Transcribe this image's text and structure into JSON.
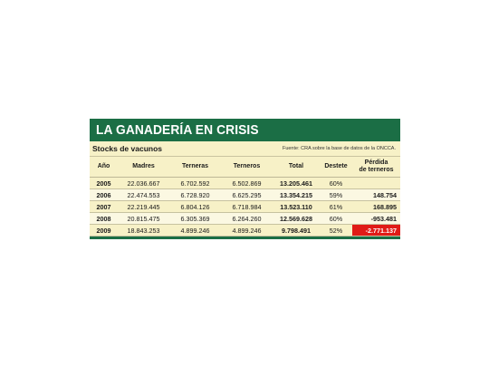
{
  "title": "LA GANADERÍA EN CRISIS",
  "subtitle": "Stocks de vacunos",
  "source": "Fuente: CRA sobre la base de datos de la ONCCA.",
  "colors": {
    "title_bar": "#1b6e45",
    "panel": "#f7f1c7",
    "highlight_negative": "#e01b17"
  },
  "headers": {
    "year": "Año",
    "madres": "Madres",
    "terneras": "Terneras",
    "terneros": "Terneros",
    "total": "Total",
    "destete": "Destete",
    "perdida_line1": "Pérdida",
    "perdida_line2": "de terneros"
  },
  "rows": [
    {
      "year": "2005",
      "madres": "22.036.667",
      "terneras": "6.702.592",
      "terneros": "6.502.869",
      "total": "13.205.461",
      "destete": "60%",
      "perdida": ""
    },
    {
      "year": "2006",
      "madres": "22.474.553",
      "terneras": "6.728.920",
      "terneros": "6.625.295",
      "total": "13.354.215",
      "destete": "59%",
      "perdida": "148.754"
    },
    {
      "year": "2007",
      "madres": "22.219.445",
      "terneras": "6.804.126",
      "terneros": "6.718.984",
      "total": "13.523.110",
      "destete": "61%",
      "perdida": "168.895"
    },
    {
      "year": "2008",
      "madres": "20.815.475",
      "terneras": "6.305.369",
      "terneros": "6.264.260",
      "total": "12.569.628",
      "destete": "60%",
      "perdida": "-953.481"
    },
    {
      "year": "2009",
      "madres": "18.843.253",
      "terneras": "4.899.246",
      "terneros": "4.899.246",
      "total": "9.798.491",
      "destete": "52%",
      "perdida": "-2.771.137"
    }
  ]
}
